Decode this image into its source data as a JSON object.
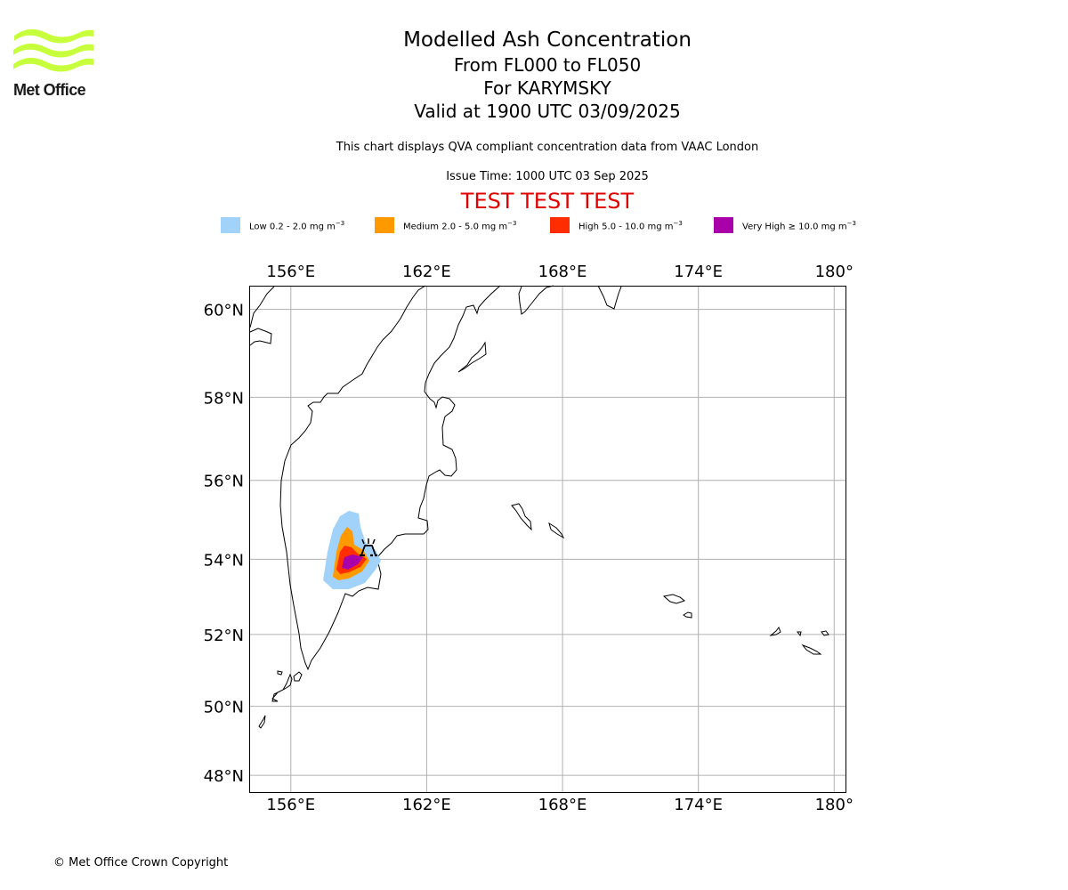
{
  "logo": {
    "text": "Met Office",
    "colors": {
      "waves": "#c8ff3c",
      "text": "#1a1a1a"
    }
  },
  "title": {
    "main": "Modelled Ash Concentration",
    "levels": "From FL000 to FL050",
    "volcano": "For KARYMSKY",
    "valid": "Valid at 1900 UTC 03/09/2025"
  },
  "compliance_note": "This chart displays QVA compliant concentration data from VAAC London",
  "issue_time": "Issue Time: 1000 UTC 03 Sep 2025",
  "test_banner": "TEST TEST TEST",
  "legend": [
    {
      "name": "Low",
      "range": "0.2 - 2.0",
      "unit": "mg m",
      "exp": "−3",
      "color": "#a0d2fa"
    },
    {
      "name": "Medium",
      "range": "2.0 - 5.0",
      "unit": "mg m",
      "exp": "−3",
      "color": "#ff9900"
    },
    {
      "name": "High",
      "range": "5.0 - 10.0",
      "unit": "mg m",
      "exp": "−3",
      "color": "#ff2d00"
    },
    {
      "name": "Very High",
      "range": "≥  10.0",
      "unit": "mg m",
      "exp": "−3",
      "color": "#aa00aa"
    }
  ],
  "map": {
    "lon_range": [
      154.2,
      180.5
    ],
    "lat_range": [
      47.5,
      60.5
    ],
    "lon_ticks": [
      156,
      162,
      168,
      174,
      180
    ],
    "lat_ticks": [
      48,
      50,
      52,
      54,
      56,
      58,
      60
    ],
    "lon_tick_labels": [
      "156°E",
      "162°E",
      "168°E",
      "174°E",
      "180°"
    ],
    "lat_tick_labels": [
      "48°N",
      "50°N",
      "52°N",
      "54°N",
      "56°N",
      "58°N",
      "60°N"
    ],
    "grid": true,
    "volcano_location": {
      "name": "KARYMSKY",
      "lon": 159.44,
      "lat": 54.05
    }
  },
  "copyright": "© Met Office Crown Copyright"
}
